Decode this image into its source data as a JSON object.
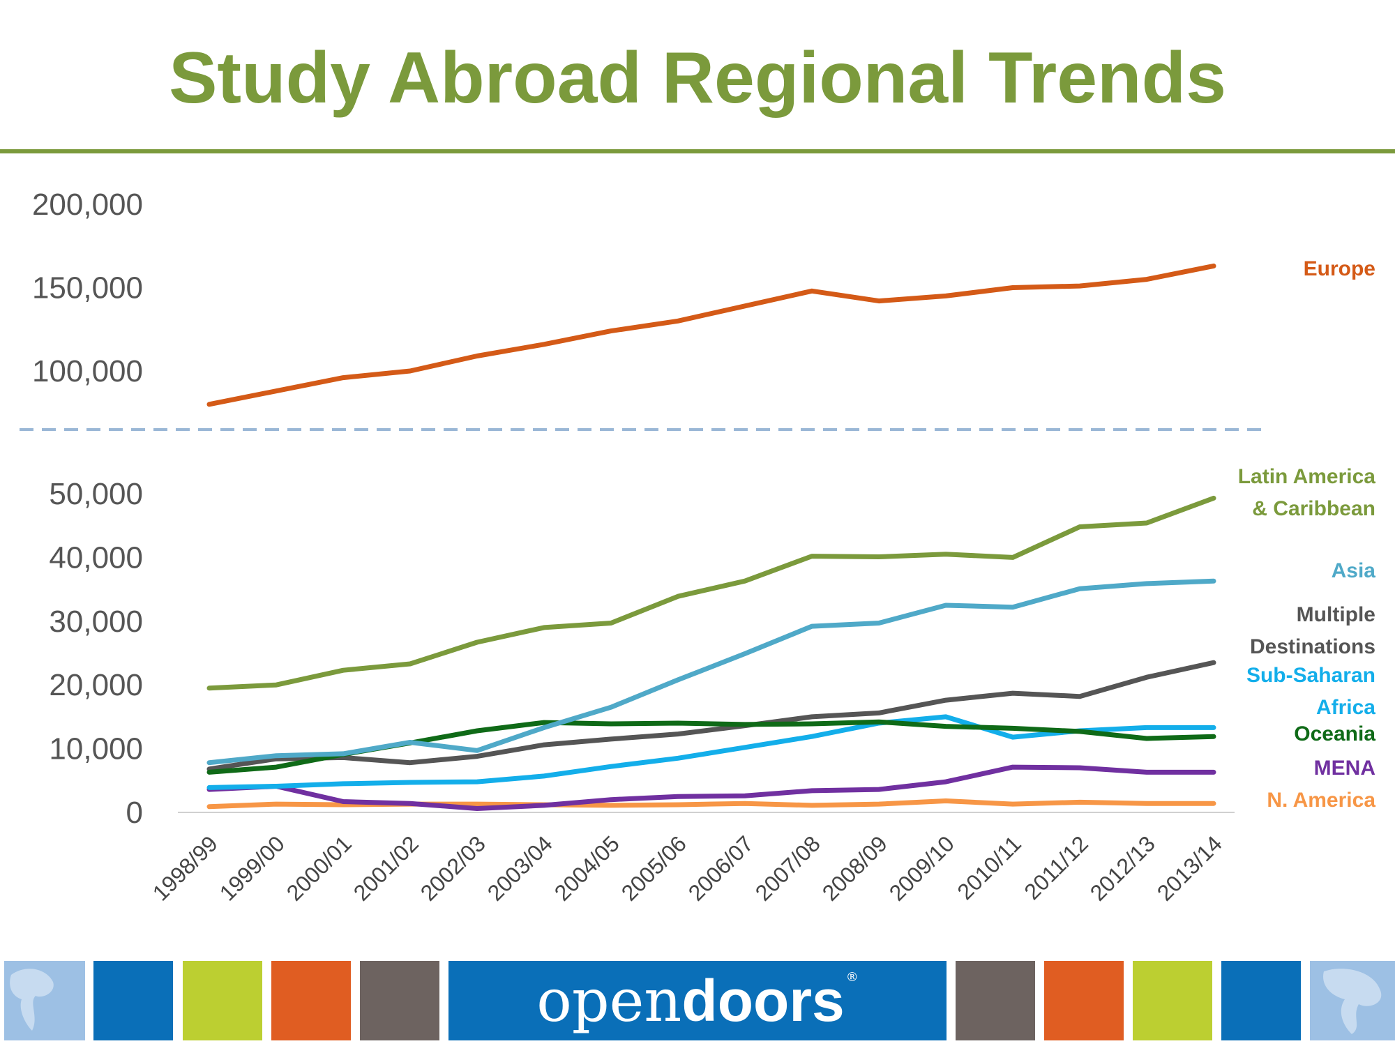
{
  "header": {
    "title": "Study Abroad Regional Trends"
  },
  "brand": {
    "prefix": "open",
    "suffix": "doors",
    "registered": "®"
  },
  "colors": {
    "title": "#7b9a3c",
    "rule": "#7b9a3c",
    "divider": "#9ab7d6",
    "baseline": "#d0d0d0",
    "brand_bg": "#0a6fb8",
    "tile_blue": "#0a6fb8",
    "tile_green": "#bccf31",
    "tile_orange": "#e05d22",
    "tile_gray": "#6d6360",
    "globe": "#9dc0e4"
  },
  "chart_data": {
    "type": "line",
    "title": "",
    "categories": [
      "1998/99",
      "1999/00",
      "2000/01",
      "2001/02",
      "2002/03",
      "2003/04",
      "2004/05",
      "2005/06",
      "2006/07",
      "2007/08",
      "2008/09",
      "2009/10",
      "2010/11",
      "2011/12",
      "2012/13",
      "2013/14"
    ],
    "upper_panel": {
      "yticks": [
        "200,000",
        "150,000",
        "100,000"
      ],
      "ylim": [
        80000,
        200000
      ],
      "series": [
        {
          "name": "Europe",
          "color": "#d45a17",
          "values": [
            80000,
            88000,
            96000,
            100000,
            109000,
            116000,
            124000,
            130000,
            139000,
            148000,
            142000,
            145000,
            150000,
            151000,
            155000,
            163000
          ]
        }
      ]
    },
    "lower_panel": {
      "yticks": [
        "50,000",
        "40,000",
        "30,000",
        "20,000",
        "10,000",
        "0"
      ],
      "ylim": [
        0,
        50000
      ],
      "series": [
        {
          "name": "Latin America & Caribbean",
          "label_lines": [
            "Latin America",
            "& Caribbean"
          ],
          "color": "#7b9a3c",
          "values": [
            19500,
            20000,
            22300,
            23300,
            26700,
            29000,
            29700,
            33900,
            36300,
            40200,
            40100,
            40500,
            40000,
            44800,
            45400,
            49300
          ]
        },
        {
          "name": "Asia",
          "label_lines": [
            "Asia"
          ],
          "color": "#4fa9c8",
          "values": [
            7800,
            8900,
            9200,
            11000,
            9700,
            13300,
            16500,
            20800,
            24900,
            29200,
            29700,
            32500,
            32200,
            35100,
            35900,
            36300
          ]
        },
        {
          "name": "Multiple Destinations",
          "label_lines": [
            "Multiple",
            "Destinations"
          ],
          "color": "#555555",
          "values": [
            6800,
            8400,
            8600,
            7800,
            8800,
            10600,
            11500,
            12300,
            13600,
            15000,
            15600,
            17600,
            18700,
            18200,
            21200,
            23500
          ]
        },
        {
          "name": "Sub-Saharan Africa",
          "label_lines": [
            "Sub-Saharan",
            "Africa"
          ],
          "color": "#13aeea",
          "values": [
            3900,
            4100,
            4500,
            4700,
            4800,
            5700,
            7200,
            8500,
            10200,
            11900,
            14000,
            15000,
            11800,
            12800,
            13300,
            13300
          ]
        },
        {
          "name": "Oceania",
          "label_lines": [
            "Oceania"
          ],
          "color": "#0f6a17",
          "values": [
            6300,
            7100,
            9100,
            10900,
            12800,
            14100,
            13900,
            14000,
            13800,
            13900,
            14200,
            13500,
            13200,
            12700,
            11600,
            11900
          ]
        },
        {
          "name": "MENA",
          "label_lines": [
            "MENA"
          ],
          "color": "#7030a0",
          "values": [
            3600,
            4100,
            1700,
            1400,
            600,
            1100,
            2000,
            2500,
            2600,
            3400,
            3600,
            4800,
            7100,
            7000,
            6300,
            6300
          ]
        },
        {
          "name": "N. America",
          "label_lines": [
            "N. America"
          ],
          "color": "#f79646",
          "values": [
            900,
            1300,
            1200,
            1300,
            1300,
            1200,
            1100,
            1200,
            1400,
            1100,
            1300,
            1800,
            1300,
            1600,
            1400,
            1400
          ]
        }
      ]
    },
    "grid": false
  }
}
